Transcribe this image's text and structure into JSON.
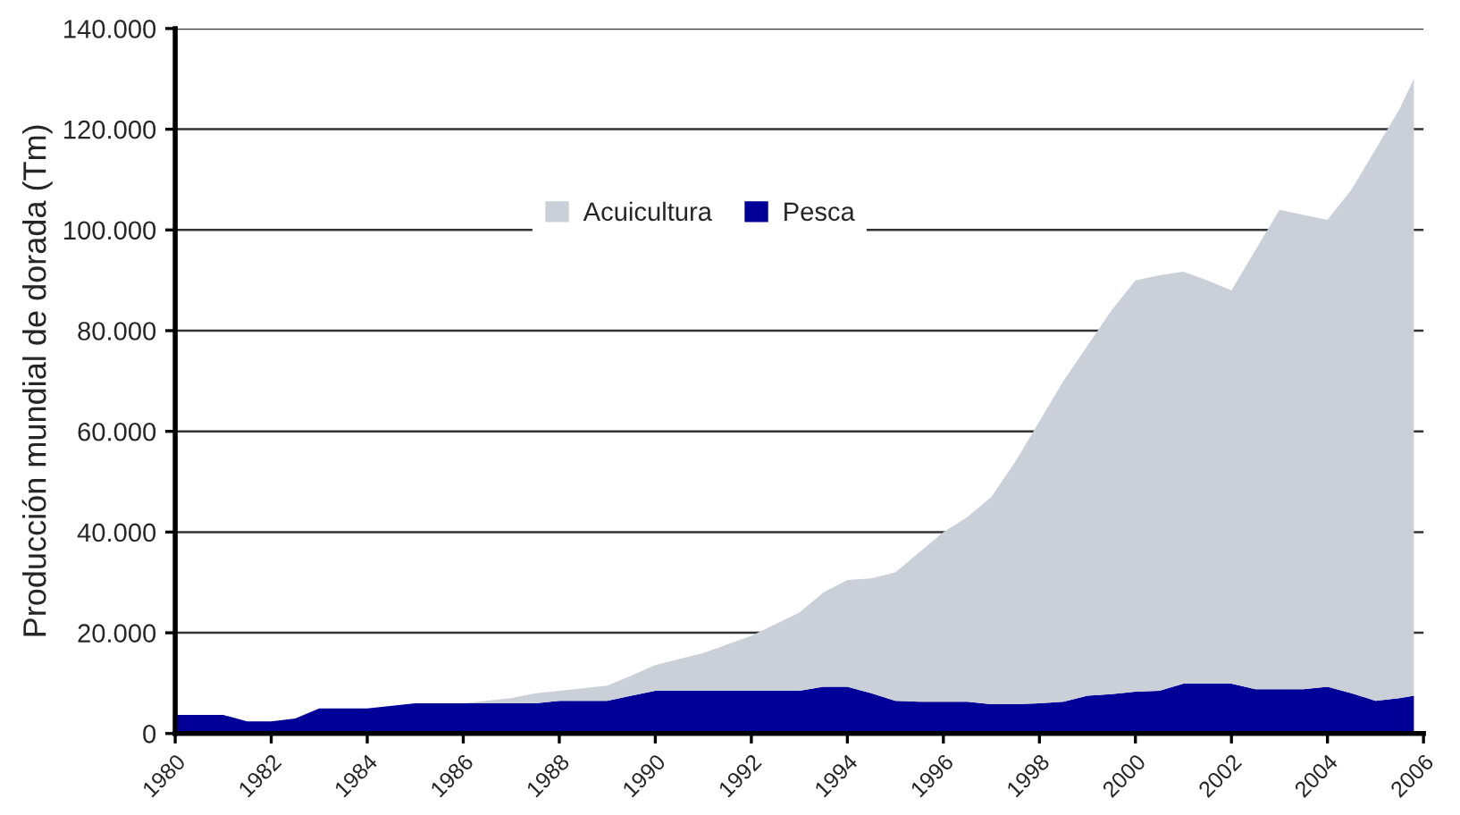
{
  "chart_data": {
    "type": "area",
    "stacked": true,
    "ylabel": "Producción mundial de dorada (Tm)",
    "x": [
      1980,
      1981,
      1981.5,
      1982,
      1982.5,
      1983,
      1984,
      1985,
      1986,
      1987,
      1987.5,
      1988,
      1989,
      1989.5,
      1990,
      1991,
      1992,
      1993,
      1993.5,
      1994,
      1994.5,
      1995,
      1995.5,
      1996,
      1996.5,
      1997,
      1997.5,
      1998,
      1998.5,
      1999,
      1999.5,
      2000,
      2000.5,
      2001,
      2001.5,
      2002,
      2002.5,
      2003,
      2003.5,
      2004,
      2004.5,
      2005,
      2005.5,
      2005.8
    ],
    "series": [
      {
        "name": "Pesca",
        "color": "#000099",
        "values": [
          3700,
          3700,
          2400,
          2400,
          3000,
          5000,
          5000,
          6000,
          6000,
          6000,
          6000,
          6500,
          6500,
          7500,
          8500,
          8500,
          8500,
          8500,
          9300,
          9300,
          8000,
          6500,
          6300,
          6300,
          6300,
          5800,
          5800,
          6000,
          6300,
          7500,
          7800,
          8300,
          8500,
          9900,
          9900,
          9900,
          8800,
          8800,
          8800,
          9300,
          8000,
          6500,
          7000,
          7500
        ]
      },
      {
        "name": "Acuicultura",
        "color": "#cbcfd8",
        "values": [
          0,
          0,
          0,
          0,
          0,
          0,
          0,
          0,
          0,
          1000,
          2000,
          2000,
          3000,
          4000,
          5100,
          7500,
          10900,
          15500,
          18700,
          21200,
          22800,
          25500,
          29700,
          33700,
          36700,
          41200,
          48200,
          56000,
          63700,
          69500,
          76200,
          81700,
          82500,
          81800,
          80100,
          78100,
          87200,
          95200,
          94200,
          92700,
          100000,
          109500,
          117000,
          122500
        ]
      }
    ],
    "xlim": [
      1980,
      2006
    ],
    "xticks": [
      1980,
      1982,
      1984,
      1986,
      1988,
      1990,
      1992,
      1994,
      1996,
      1998,
      2000,
      2002,
      2004,
      2006
    ],
    "ylim": [
      0,
      140000
    ],
    "yticks": [
      0,
      {
        "value": 20000,
        "label": "20.000"
      },
      {
        "value": 40000,
        "label": "40.000"
      },
      {
        "value": 60000,
        "label": "60.000"
      },
      {
        "value": 80000,
        "label": "80.000"
      },
      {
        "value": 100000,
        "label": "100.000"
      },
      {
        "value": 120000,
        "label": "120.000"
      },
      {
        "value": 140000,
        "label": "140.000"
      }
    ],
    "grid": "y",
    "legend": "top"
  }
}
